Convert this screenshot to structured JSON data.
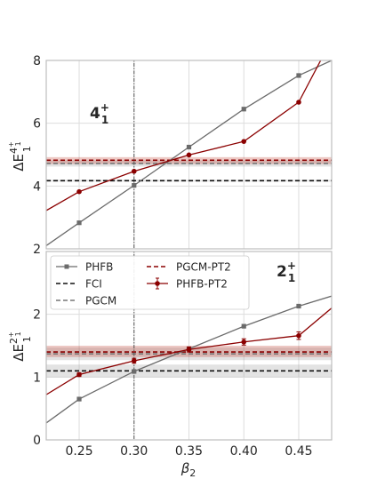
{
  "chart_data": [
    {
      "type": "line",
      "panel": "top",
      "state_label": "4",
      "state_sup": "+",
      "state_sub": "1",
      "ylabel_main": "ΔE",
      "ylabel_sup": "4",
      "ylabel_supsup": "+",
      "ylabel_supsub": "1",
      "ylabel_sub": "1",
      "xlim": [
        0.22,
        0.48
      ],
      "ylim": [
        2,
        8
      ],
      "yticks": [
        {
          "v": 2,
          "label": "2"
        },
        {
          "v": 4,
          "label": "4"
        },
        {
          "v": 6,
          "label": "6"
        },
        {
          "v": 8,
          "label": "8"
        }
      ],
      "grid": true,
      "vline_x": 0.3,
      "series": [
        {
          "name": "PHFB",
          "x": [
            0.22,
            0.25,
            0.3,
            0.35,
            0.4,
            0.45,
            0.48
          ],
          "y": [
            2.1,
            2.83,
            4.02,
            5.24,
            6.45,
            7.52,
            8.0
          ],
          "markers": [
            0.25,
            0.3,
            0.35,
            0.4,
            0.45
          ]
        },
        {
          "name": "PHFB-PT2",
          "x": [
            0.22,
            0.25,
            0.3,
            0.35,
            0.4,
            0.45,
            0.47
          ],
          "y": [
            3.22,
            3.82,
            4.47,
            4.99,
            5.42,
            6.67,
            8.0
          ],
          "markers": [
            0.25,
            0.3,
            0.35,
            0.4,
            0.45
          ]
        }
      ],
      "hlines": [
        {
          "name": "FCI",
          "y": 4.17,
          "band": [
            4.14,
            4.2
          ]
        },
        {
          "name": "PGCM",
          "y": 4.72,
          "band": [
            4.62,
            4.82
          ]
        },
        {
          "name": "PGCM-PT2",
          "y": 4.82,
          "band": [
            4.7,
            4.92
          ]
        }
      ]
    },
    {
      "type": "line",
      "panel": "bottom",
      "state_label": "2",
      "state_sup": "+",
      "state_sub": "1",
      "ylabel_main": "ΔE",
      "ylabel_sup": "2",
      "ylabel_supsup": "+",
      "ylabel_supsub": "1",
      "ylabel_sub": "1",
      "xlabel_main": "β",
      "xlabel_sub": "2",
      "xlim": [
        0.22,
        0.48
      ],
      "ylim": [
        0,
        3
      ],
      "xticks": [
        {
          "v": 0.25,
          "label": "0.25"
        },
        {
          "v": 0.3,
          "label": "0.30"
        },
        {
          "v": 0.35,
          "label": "0.35"
        },
        {
          "v": 0.4,
          "label": "0.40"
        },
        {
          "v": 0.45,
          "label": "0.45"
        }
      ],
      "yticks": [
        {
          "v": 0,
          "label": "0"
        },
        {
          "v": 1,
          "label": "1"
        },
        {
          "v": 2,
          "label": "2"
        }
      ],
      "grid": true,
      "vline_x": 0.3,
      "series": [
        {
          "name": "PHFB",
          "x": [
            0.22,
            0.25,
            0.3,
            0.35,
            0.4,
            0.45,
            0.48
          ],
          "y": [
            0.27,
            0.65,
            1.09,
            1.45,
            1.81,
            2.13,
            2.29
          ],
          "markers": [
            0.25,
            0.3,
            0.35,
            0.4,
            0.45
          ]
        },
        {
          "name": "PHFB-PT2",
          "x": [
            0.22,
            0.25,
            0.3,
            0.35,
            0.4,
            0.45,
            0.48
          ],
          "y": [
            0.72,
            1.04,
            1.26,
            1.44,
            1.56,
            1.66,
            2.1
          ],
          "yerr": [
            0,
            0.03,
            0.04,
            0.04,
            0.05,
            0.06,
            0
          ],
          "markers": [
            0.25,
            0.3,
            0.35,
            0.4,
            0.45
          ]
        }
      ],
      "hlines": [
        {
          "name": "FCI",
          "y": 1.1,
          "band": [
            1.0,
            1.2
          ]
        },
        {
          "name": "PGCM",
          "y": 1.37,
          "band": [
            1.27,
            1.47
          ]
        },
        {
          "name": "PGCM-PT2",
          "y": 1.4,
          "band": [
            1.32,
            1.5
          ]
        }
      ]
    }
  ],
  "legend": {
    "placement": "top-left of bottom panel",
    "entries": [
      {
        "name": "PHFB",
        "color": "#6b6b6b",
        "style": "line-square"
      },
      {
        "name": "FCI",
        "color": "#111111",
        "style": "dashed"
      },
      {
        "name": "PGCM",
        "color": "#777777",
        "style": "dashed"
      },
      {
        "name": "PGCM-PT2",
        "color": "#8b0000",
        "style": "dashed"
      },
      {
        "name": "PHFB-PT2",
        "color": "#8b0000",
        "style": "line-errorbar"
      }
    ]
  },
  "colors": {
    "phfb": "#6b6b6b",
    "fci": "#111111",
    "pgcm": "#777777",
    "pt2": "#8b0000",
    "band_red": "#c0392b",
    "band_gray": "#9a9a9a",
    "grid": "#dddddd",
    "frame": "#bdbdbd"
  }
}
